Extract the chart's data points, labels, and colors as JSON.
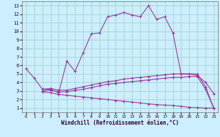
{
  "xlabel": "Windchill (Refroidissement éolien,°C)",
  "x_ticks": [
    0,
    1,
    2,
    3,
    4,
    5,
    6,
    7,
    8,
    9,
    10,
    11,
    12,
    13,
    14,
    15,
    16,
    17,
    18,
    19,
    20,
    21,
    22,
    23
  ],
  "y_ticks": [
    1,
    2,
    3,
    4,
    5,
    6,
    7,
    8,
    9,
    10,
    11,
    12,
    13
  ],
  "ylim": [
    0.5,
    13.5
  ],
  "xlim": [
    -0.5,
    23.5
  ],
  "bg_color": "#cceeff",
  "line_color": "#993399",
  "grid_color": "#99ccbb",
  "line1_x": [
    0,
    1,
    2,
    3,
    4,
    5,
    6,
    7,
    8,
    9,
    10,
    11,
    12,
    13,
    14,
    15,
    16,
    17,
    18,
    19,
    20,
    21,
    22,
    23
  ],
  "line1_y": [
    5.6,
    4.5,
    3.2,
    3.2,
    2.8,
    6.5,
    5.3,
    7.5,
    9.7,
    9.8,
    11.7,
    11.9,
    12.2,
    11.9,
    11.7,
    13.0,
    11.4,
    11.7,
    9.8,
    5.0,
    5.0,
    4.8,
    4.0,
    2.7
  ],
  "line2_x": [
    2,
    3,
    4,
    5,
    6,
    7,
    8,
    9,
    10,
    11,
    12,
    13,
    14,
    15,
    16,
    17,
    18,
    19,
    20,
    21,
    22,
    23
  ],
  "line2_y": [
    3.2,
    3.3,
    3.1,
    3.1,
    3.3,
    3.5,
    3.7,
    3.9,
    4.1,
    4.2,
    4.4,
    4.5,
    4.6,
    4.7,
    4.8,
    4.9,
    5.0,
    5.0,
    5.0,
    5.0,
    3.5,
    1.0
  ],
  "line3_x": [
    2,
    3,
    4,
    5,
    6,
    7,
    8,
    9,
    10,
    11,
    12,
    13,
    14,
    15,
    16,
    17,
    18,
    19,
    20,
    21,
    22,
    23
  ],
  "line3_y": [
    3.0,
    3.1,
    2.9,
    2.9,
    3.1,
    3.2,
    3.4,
    3.6,
    3.8,
    3.9,
    4.0,
    4.1,
    4.2,
    4.3,
    4.4,
    4.5,
    4.6,
    4.6,
    4.7,
    4.7,
    3.2,
    1.0
  ],
  "line4_x": [
    2,
    3,
    4,
    5,
    6,
    7,
    8,
    9,
    10,
    11,
    12,
    13,
    14,
    15,
    16,
    17,
    18,
    19,
    20,
    21,
    22,
    23
  ],
  "line4_y": [
    2.9,
    2.8,
    2.6,
    2.5,
    2.4,
    2.3,
    2.2,
    2.1,
    2.0,
    1.9,
    1.8,
    1.7,
    1.6,
    1.5,
    1.4,
    1.35,
    1.3,
    1.2,
    1.1,
    1.05,
    1.0,
    1.0
  ]
}
